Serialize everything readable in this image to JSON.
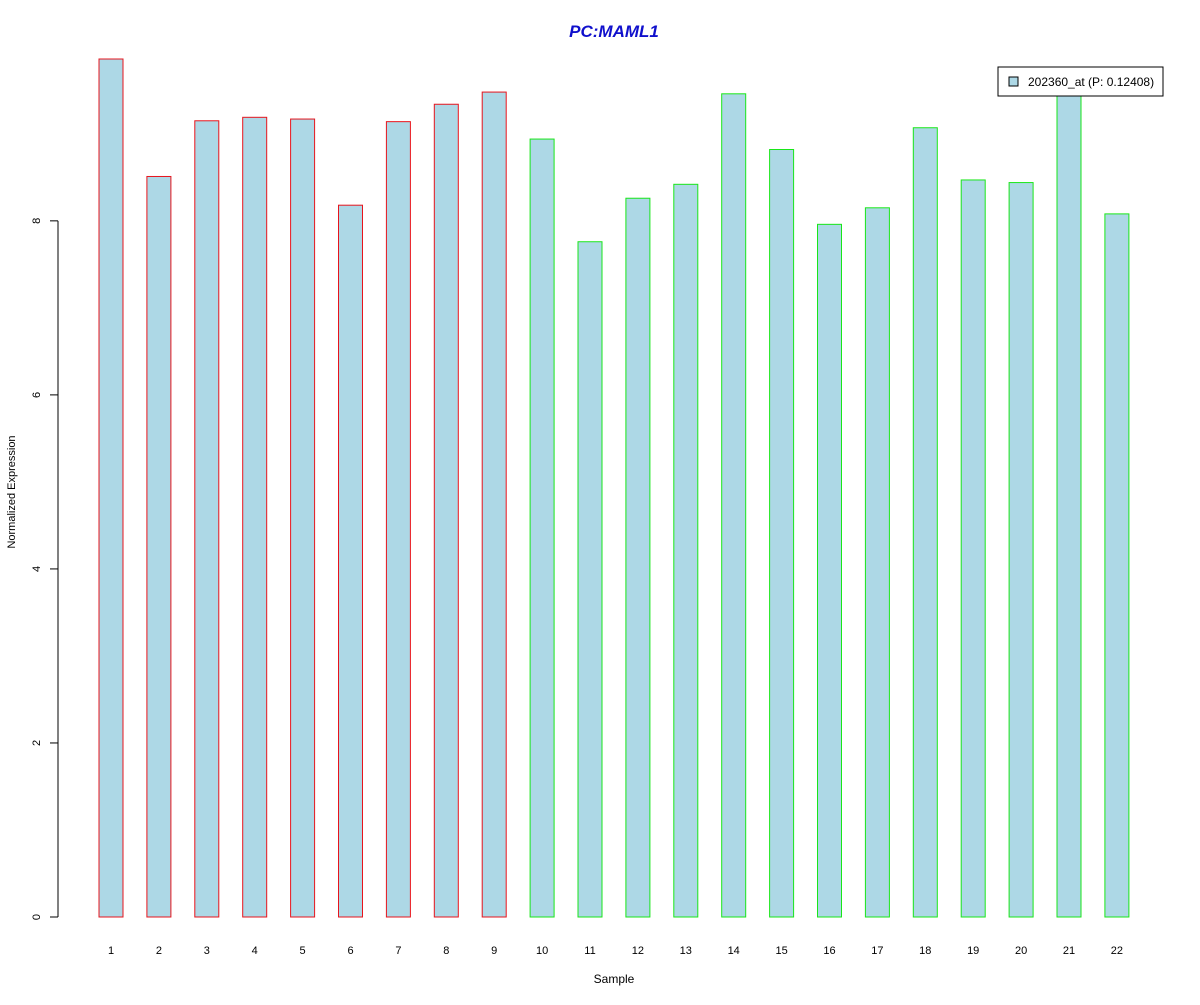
{
  "chart_data": {
    "type": "bar",
    "title": "PC:MAML1",
    "xlabel": "Sample",
    "ylabel": "Normalized Expression",
    "categories": [
      "1",
      "2",
      "3",
      "4",
      "5",
      "6",
      "7",
      "8",
      "9",
      "10",
      "11",
      "12",
      "13",
      "14",
      "15",
      "16",
      "17",
      "18",
      "19",
      "20",
      "21",
      "22"
    ],
    "series": [
      {
        "name": "202360_at (P: 0.12408)",
        "values": [
          9.86,
          8.51,
          9.15,
          9.19,
          9.17,
          8.18,
          9.14,
          9.34,
          9.48,
          8.94,
          7.76,
          8.26,
          8.42,
          9.46,
          8.82,
          7.96,
          8.15,
          9.07,
          8.47,
          8.44,
          9.58,
          8.08
        ]
      }
    ],
    "groups": [
      {
        "samples": [
          "1",
          "2",
          "3",
          "4",
          "5",
          "6",
          "7",
          "8",
          "9"
        ],
        "border_color": "#e8141c"
      },
      {
        "samples": [
          "10",
          "11",
          "12",
          "13",
          "14",
          "15",
          "16",
          "17",
          "18",
          "19",
          "20",
          "21",
          "22"
        ],
        "border_color": "#19e619"
      }
    ],
    "bar_fill": "#add8e6",
    "title_color": "#1010cc",
    "y_ticks": [
      "0",
      "2",
      "4",
      "6",
      "8"
    ],
    "ylim": [
      0,
      9.86
    ],
    "grid": false,
    "legend_position": "top-right"
  }
}
